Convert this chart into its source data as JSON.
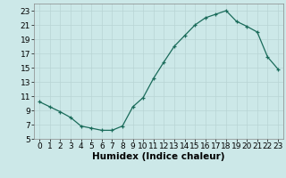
{
  "x": [
    0,
    1,
    2,
    3,
    4,
    5,
    6,
    7,
    8,
    9,
    10,
    11,
    12,
    13,
    14,
    15,
    16,
    17,
    18,
    19,
    20,
    21,
    22,
    23
  ],
  "y": [
    10.2,
    9.5,
    8.8,
    8.0,
    6.8,
    6.5,
    6.2,
    6.2,
    6.8,
    9.5,
    10.8,
    13.5,
    15.8,
    18.0,
    19.5,
    21.0,
    22.0,
    22.5,
    23.0,
    21.5,
    20.8,
    20.0,
    16.5,
    14.8
  ],
  "xlabel": "Humidex (Indice chaleur)",
  "xlim": [
    -0.5,
    23.5
  ],
  "ylim": [
    5,
    24
  ],
  "yticks": [
    5,
    7,
    9,
    11,
    13,
    15,
    17,
    19,
    21,
    23
  ],
  "xticks": [
    0,
    1,
    2,
    3,
    4,
    5,
    6,
    7,
    8,
    9,
    10,
    11,
    12,
    13,
    14,
    15,
    16,
    17,
    18,
    19,
    20,
    21,
    22,
    23
  ],
  "line_color": "#1a6b5a",
  "marker": "+",
  "bg_color": "#cce8e8",
  "grid_color": "#b8d4d4",
  "xlabel_fontsize": 7.5,
  "tick_fontsize": 6.5
}
